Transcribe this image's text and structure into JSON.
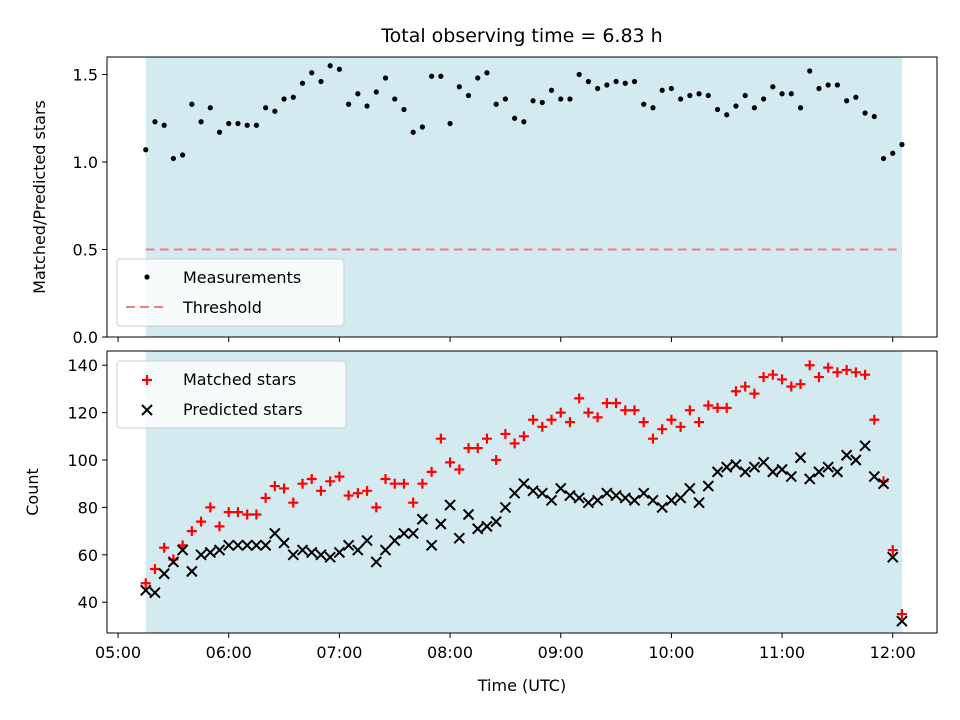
{
  "chart_data": [
    {
      "type": "scatter",
      "title": "Total observing time = 6.83 h",
      "ylabel": "Matched/Predicted stars",
      "xlabel": "",
      "ylim": [
        0,
        1.6
      ],
      "xlim": [
        "04:54",
        "12:24"
      ],
      "yticks": [
        0.0,
        0.5,
        1.0,
        1.5
      ],
      "ytick_labels": [
        "0.0",
        "0.5",
        "1.0",
        "1.5"
      ],
      "shaded_span": [
        "05:15",
        "12:05"
      ],
      "grid": false,
      "legend_position": "lower-left",
      "legend": [
        "Measurements",
        "Threshold"
      ],
      "threshold": 0.5,
      "colors": {
        "measurements": "#000000",
        "threshold": "#f08080",
        "span": "#d4eaf1"
      },
      "series": [
        {
          "name": "Measurements",
          "x": [
            "05:15",
            "05:20",
            "05:25",
            "05:30",
            "05:35",
            "05:40",
            "05:45",
            "05:50",
            "05:55",
            "06:00",
            "06:05",
            "06:10",
            "06:15",
            "06:20",
            "06:25",
            "06:30",
            "06:35",
            "06:40",
            "06:45",
            "06:50",
            "06:55",
            "07:00",
            "07:05",
            "07:10",
            "07:15",
            "07:20",
            "07:25",
            "07:30",
            "07:35",
            "07:40",
            "07:45",
            "07:50",
            "07:55",
            "08:00",
            "08:05",
            "08:10",
            "08:15",
            "08:20",
            "08:25",
            "08:30",
            "08:35",
            "08:40",
            "08:45",
            "08:50",
            "08:55",
            "09:00",
            "09:05",
            "09:10",
            "09:15",
            "09:20",
            "09:25",
            "09:30",
            "09:35",
            "09:40",
            "09:45",
            "09:50",
            "09:55",
            "10:00",
            "10:05",
            "10:10",
            "10:15",
            "10:20",
            "10:25",
            "10:30",
            "10:35",
            "10:40",
            "10:45",
            "10:50",
            "10:55",
            "11:00",
            "11:05",
            "11:10",
            "11:15",
            "11:20",
            "11:25",
            "11:30",
            "11:35",
            "11:40",
            "11:45",
            "11:50",
            "11:55",
            "12:00",
            "12:05"
          ],
          "y": [
            1.07,
            1.23,
            1.21,
            1.02,
            1.04,
            1.33,
            1.23,
            1.31,
            1.17,
            1.22,
            1.22,
            1.21,
            1.21,
            1.31,
            1.29,
            1.36,
            1.37,
            1.45,
            1.51,
            1.46,
            1.55,
            1.53,
            1.33,
            1.39,
            1.32,
            1.4,
            1.48,
            1.36,
            1.3,
            1.17,
            1.2,
            1.49,
            1.49,
            1.22,
            1.43,
            1.38,
            1.48,
            1.51,
            1.33,
            1.36,
            1.25,
            1.23,
            1.35,
            1.34,
            1.41,
            1.36,
            1.36,
            1.5,
            1.46,
            1.42,
            1.44,
            1.46,
            1.45,
            1.46,
            1.33,
            1.31,
            1.41,
            1.42,
            1.36,
            1.38,
            1.39,
            1.38,
            1.3,
            1.27,
            1.32,
            1.38,
            1.31,
            1.36,
            1.43,
            1.39,
            1.39,
            1.31,
            1.52,
            1.42,
            1.44,
            1.44,
            1.35,
            1.37,
            1.28,
            1.26,
            1.02,
            1.05,
            1.1
          ]
        }
      ]
    },
    {
      "type": "scatter",
      "title": "",
      "ylabel": "Count",
      "xlabel": "Time (UTC)",
      "ylim": [
        27,
        146
      ],
      "xlim": [
        "04:54",
        "12:24"
      ],
      "yticks": [
        40,
        60,
        80,
        100,
        120,
        140
      ],
      "ytick_labels": [
        "40",
        "60",
        "80",
        "100",
        "120",
        "140"
      ],
      "xticks": [
        "05:00",
        "06:00",
        "07:00",
        "08:00",
        "09:00",
        "10:00",
        "11:00",
        "12:00"
      ],
      "xtick_labels": [
        "05:00",
        "06:00",
        "07:00",
        "08:00",
        "09:00",
        "10:00",
        "11:00",
        "12:00"
      ],
      "shaded_span": [
        "05:15",
        "12:05"
      ],
      "grid": false,
      "legend_position": "upper-left",
      "legend": [
        "Matched stars",
        "Predicted stars"
      ],
      "colors": {
        "matched": "#ff0000",
        "predicted": "#000000",
        "span": "#d4eaf1"
      },
      "series": [
        {
          "name": "Matched stars",
          "marker": "plus",
          "x": [
            "05:15",
            "05:20",
            "05:25",
            "05:30",
            "05:35",
            "05:40",
            "05:45",
            "05:50",
            "05:55",
            "06:00",
            "06:05",
            "06:10",
            "06:15",
            "06:20",
            "06:25",
            "06:30",
            "06:35",
            "06:40",
            "06:45",
            "06:50",
            "06:55",
            "07:00",
            "07:05",
            "07:10",
            "07:15",
            "07:20",
            "07:25",
            "07:30",
            "07:35",
            "07:40",
            "07:45",
            "07:50",
            "07:55",
            "08:00",
            "08:05",
            "08:10",
            "08:15",
            "08:20",
            "08:25",
            "08:30",
            "08:35",
            "08:40",
            "08:45",
            "08:50",
            "08:55",
            "09:00",
            "09:05",
            "09:10",
            "09:15",
            "09:20",
            "09:25",
            "09:30",
            "09:35",
            "09:40",
            "09:45",
            "09:50",
            "09:55",
            "10:00",
            "10:05",
            "10:10",
            "10:15",
            "10:20",
            "10:25",
            "10:30",
            "10:35",
            "10:40",
            "10:45",
            "10:50",
            "10:55",
            "11:00",
            "11:05",
            "11:10",
            "11:15",
            "11:20",
            "11:25",
            "11:30",
            "11:35",
            "11:40",
            "11:45",
            "11:50",
            "11:55",
            "12:00",
            "12:05"
          ],
          "y": [
            48,
            54,
            63,
            58,
            64,
            70,
            74,
            80,
            72,
            78,
            78,
            77,
            77,
            84,
            89,
            88,
            82,
            90,
            92,
            87,
            91,
            93,
            85,
            86,
            87,
            80,
            92,
            90,
            90,
            82,
            90,
            95,
            109,
            99,
            96,
            105,
            105,
            109,
            100,
            111,
            107,
            110,
            117,
            114,
            117,
            120,
            116,
            126,
            120,
            118,
            124,
            124,
            121,
            121,
            116,
            109,
            113,
            117,
            114,
            121,
            116,
            123,
            122,
            122,
            129,
            131,
            128,
            135,
            136,
            134,
            131,
            132,
            140,
            135,
            139,
            137,
            138,
            137,
            136,
            117,
            91,
            62,
            35
          ]
        },
        {
          "name": "Predicted stars",
          "marker": "x",
          "x": [
            "05:15",
            "05:20",
            "05:25",
            "05:30",
            "05:35",
            "05:40",
            "05:45",
            "05:50",
            "05:55",
            "06:00",
            "06:05",
            "06:10",
            "06:15",
            "06:20",
            "06:25",
            "06:30",
            "06:35",
            "06:40",
            "06:45",
            "06:50",
            "06:55",
            "07:00",
            "07:05",
            "07:10",
            "07:15",
            "07:20",
            "07:25",
            "07:30",
            "07:35",
            "07:40",
            "07:45",
            "07:50",
            "07:55",
            "08:00",
            "08:05",
            "08:10",
            "08:15",
            "08:20",
            "08:25",
            "08:30",
            "08:35",
            "08:40",
            "08:45",
            "08:50",
            "08:55",
            "09:00",
            "09:05",
            "09:10",
            "09:15",
            "09:20",
            "09:25",
            "09:30",
            "09:35",
            "09:40",
            "09:45",
            "09:50",
            "09:55",
            "10:00",
            "10:05",
            "10:10",
            "10:15",
            "10:20",
            "10:25",
            "10:30",
            "10:35",
            "10:40",
            "10:45",
            "10:50",
            "10:55",
            "11:00",
            "11:05",
            "11:10",
            "11:15",
            "11:20",
            "11:25",
            "11:30",
            "11:35",
            "11:40",
            "11:45",
            "11:50",
            "11:55",
            "12:00",
            "12:05"
          ],
          "y": [
            45,
            44,
            52,
            57,
            62,
            53,
            60,
            61,
            62,
            64,
            64,
            64,
            64,
            64,
            69,
            65,
            60,
            62,
            61,
            60,
            59,
            61,
            64,
            62,
            66,
            57,
            62,
            66,
            69,
            69,
            75,
            64,
            73,
            81,
            67,
            77,
            71,
            72,
            74,
            80,
            86,
            90,
            87,
            86,
            83,
            88,
            85,
            84,
            82,
            83,
            86,
            85,
            84,
            83,
            86,
            83,
            80,
            83,
            84,
            88,
            82,
            89,
            95,
            97,
            98,
            95,
            97,
            99,
            95,
            96,
            93,
            101,
            92,
            95,
            97,
            95,
            102,
            100,
            106,
            93,
            90,
            59,
            32
          ]
        }
      ]
    }
  ]
}
